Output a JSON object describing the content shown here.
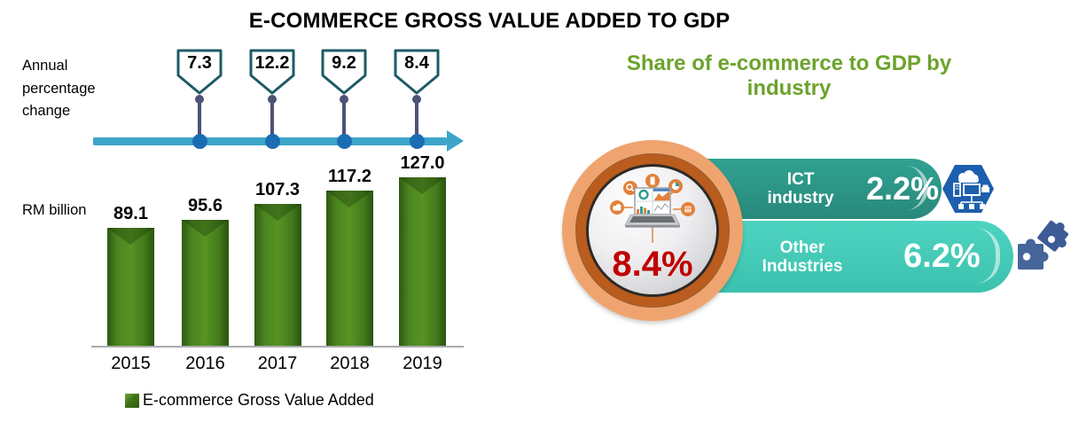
{
  "page": {
    "title": "E-COMMERCE GROSS VALUE ADDED TO GDP"
  },
  "left_chart": {
    "apc_label": "Annual percentage change",
    "apc_values": [
      "7.3",
      "12.2",
      "9.2",
      "8.4"
    ],
    "unit_label": "RM billion",
    "years": [
      "2015",
      "2016",
      "2017",
      "2018",
      "2019"
    ],
    "values": [
      "89.1",
      "95.6",
      "107.3",
      "117.2",
      "127.0"
    ],
    "legend_label": "E-commerce Gross Value Added"
  },
  "right_panel": {
    "title": "Share of e-commerce to GDP by industry",
    "total_share": "8.4%",
    "items": [
      {
        "label": "ICT industry",
        "label_lines": [
          "ICT",
          "industry"
        ],
        "value": "2.2%",
        "icon": "ict-network-icon"
      },
      {
        "label": "Other Industries",
        "label_lines": [
          "Other",
          "Industries"
        ],
        "value": "6.2%",
        "icon": "puzzle-icon"
      }
    ]
  },
  "colors": {
    "bar_green": "#4C8520",
    "legend_green": "#3E7317",
    "timeline_arrow": "#3DA5C9",
    "timeline_dot": "#1B6DB3",
    "marker_stem": "#4D5277",
    "marker_border": "#1E5B66",
    "right_title_green": "#6CA32C",
    "ribbon_ict_teal": "#2D9B8B",
    "ribbon_other_turquoise": "#44CEBB",
    "medallion_peach": "#EFA46F",
    "medallion_orange": "#B95C1E",
    "percent_red": "#C00000",
    "hexagon_blue": "#1D5FAD",
    "puzzle_blue": "#46659B"
  },
  "chart_data": [
    {
      "type": "bar",
      "title": "E-COMMERCE GROSS VALUE ADDED TO GDP",
      "categories": [
        "2015",
        "2016",
        "2017",
        "2018",
        "2019"
      ],
      "values": [
        89.1,
        95.6,
        107.3,
        117.2,
        127.0
      ],
      "xlabel": "",
      "ylabel": "RM billion",
      "ylim": [
        0,
        135
      ],
      "grid": false,
      "legend": [
        "E-commerce Gross Value Added"
      ],
      "legend_position": "bottom",
      "bar_color": "#4C8520",
      "annotations": {
        "name": "Annual percentage change",
        "values": [
          7.3,
          12.2,
          9.2,
          8.4
        ],
        "applies_to": [
          "2016",
          "2017",
          "2018",
          "2019"
        ]
      }
    },
    {
      "type": "table",
      "title": "Share of e-commerce to GDP by industry",
      "categories": [
        "ICT industry",
        "Other Industries"
      ],
      "values": [
        2.2,
        6.2
      ],
      "total": 8.4,
      "unit": "% share of GDP"
    }
  ]
}
